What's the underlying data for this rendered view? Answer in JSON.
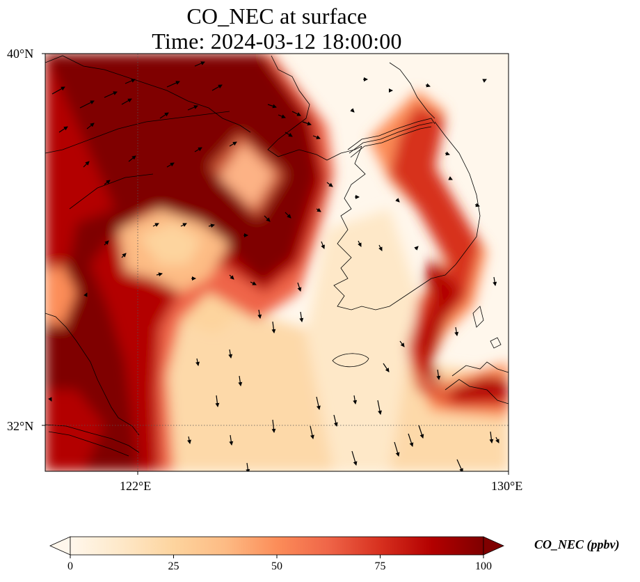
{
  "title": {
    "line1": "CO_NEC at surface",
    "line2": "Time: 2024-03-12 18:00:00"
  },
  "map": {
    "lon_range": [
      120,
      130
    ],
    "lat_range": [
      31,
      40
    ],
    "gridlines": {
      "lon": [
        122
      ],
      "lat": [
        32
      ]
    },
    "lat_labels": [
      "40°N",
      "32°N"
    ],
    "lon_labels": [
      "122°E",
      "130°E"
    ],
    "coastline_color": "#000000",
    "wind_vectors_shown": true
  },
  "colorbar": {
    "label": "CO_NEC (ppbv)",
    "ticks": [
      "0",
      "25",
      "50",
      "75",
      "100"
    ],
    "range": [
      0,
      100
    ],
    "colormap": "OrRd",
    "extend": "both",
    "colors": [
      "#fff7ec",
      "#fee8c8",
      "#fdd49e",
      "#fdbb84",
      "#fc8d59",
      "#ef6548",
      "#d7301f",
      "#b30000",
      "#7f0000"
    ]
  }
}
